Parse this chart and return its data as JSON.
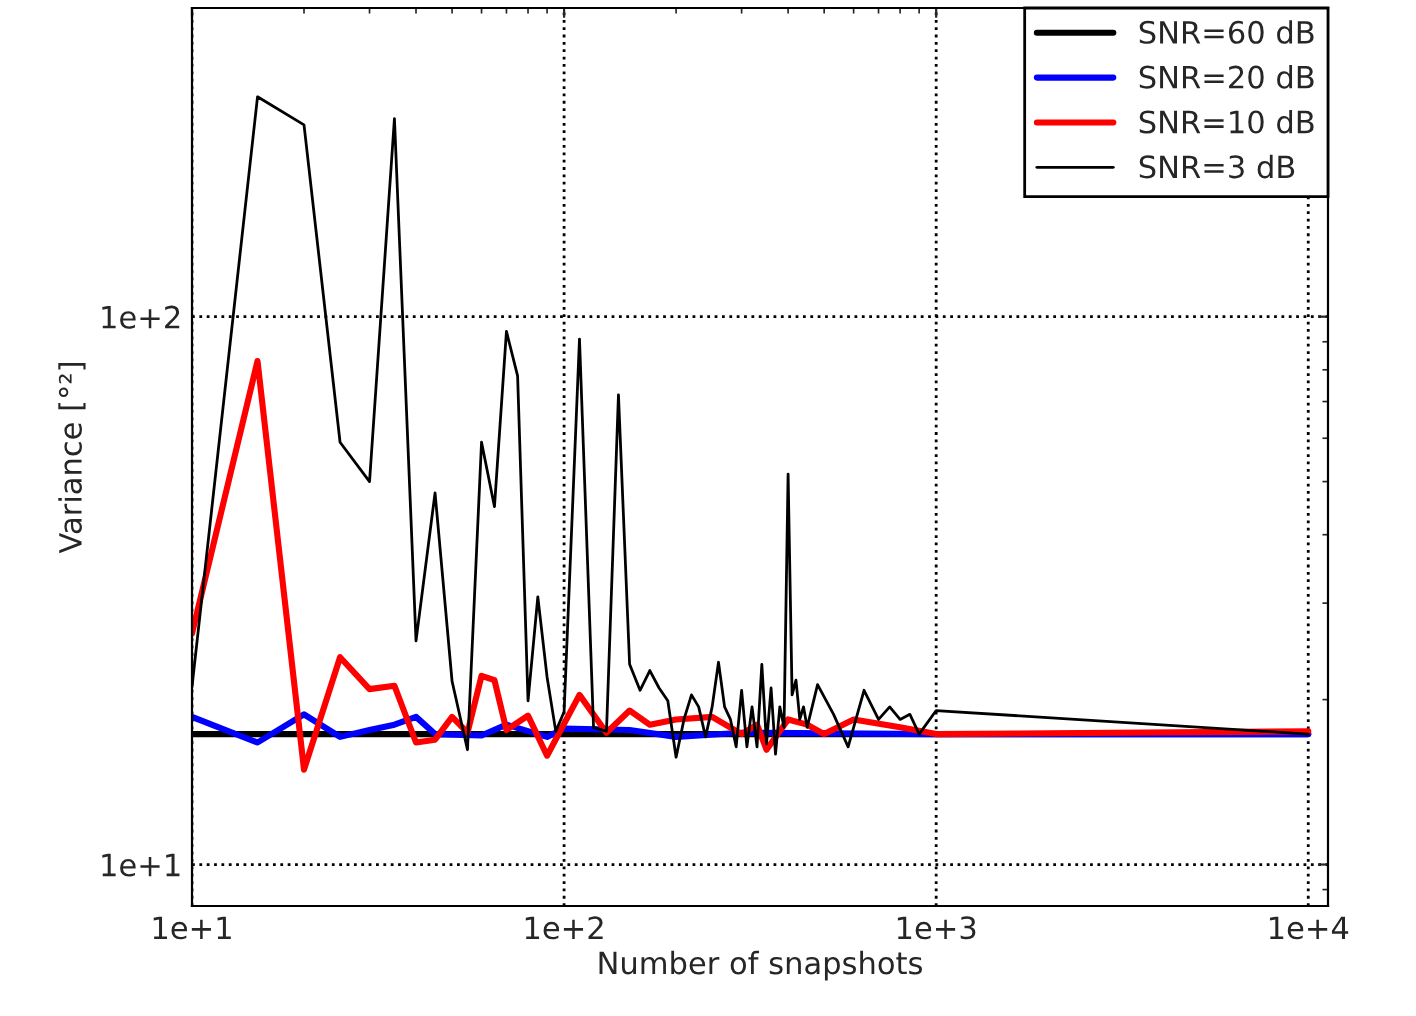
{
  "chart_data": {
    "type": "line",
    "xlabel": "Number of snapshots",
    "ylabel": "Variance [°²]",
    "log": "xy",
    "grid": true,
    "legend": "top right",
    "xlim": [
      10,
      11300
    ],
    "ylim": [
      8.4,
      366
    ],
    "xticks": [
      {
        "value": 10,
        "label": "1e+1"
      },
      {
        "value": 100,
        "label": "1e+2"
      },
      {
        "value": 1000,
        "label": "1e+3"
      },
      {
        "value": 10000,
        "label": "1e+4"
      }
    ],
    "yticks": [
      {
        "value": 10,
        "label": "1e+1"
      },
      {
        "value": 100,
        "label": "1e+2"
      }
    ],
    "series": [
      {
        "name": "SNR=60 dB",
        "color": "#000000",
        "x": [
          10,
          100,
          1000,
          10000
        ],
        "values": [
          17.3,
          17.3,
          17.3,
          17.3
        ]
      },
      {
        "name": "SNR=20 dB",
        "color": "#0000ff",
        "x": [
          10,
          15,
          20,
          25,
          30,
          35,
          40,
          45,
          60,
          70,
          90,
          100,
          150,
          200,
          300,
          1000,
          10000
        ],
        "values": [
          18.6,
          16.7,
          18.8,
          17.1,
          17.6,
          18.0,
          18.6,
          17.3,
          17.2,
          18.0,
          17.1,
          17.7,
          17.6,
          17.1,
          17.4,
          17.3,
          17.3
        ]
      },
      {
        "name": "SNR=10 dB",
        "color": "#ff0000",
        "x": [
          10,
          15,
          20,
          25,
          30,
          35,
          40,
          45,
          50,
          55,
          60,
          65,
          70,
          80,
          90,
          110,
          130,
          150,
          170,
          200,
          250,
          300,
          330,
          350,
          400,
          450,
          500,
          600,
          800,
          1000,
          10000
        ],
        "values": [
          26.4,
          83,
          14.9,
          23.9,
          20.9,
          21.2,
          16.7,
          16.9,
          18.6,
          17.4,
          22.1,
          21.7,
          17.6,
          18.7,
          15.8,
          20.4,
          17.4,
          19.1,
          18.0,
          18.4,
          18.6,
          17.3,
          18.0,
          16.2,
          18.4,
          18.0,
          17.3,
          18.4,
          17.8,
          17.3,
          17.5
        ]
      },
      {
        "name": "SNR=3 dB",
        "color": "#000000",
        "x": [
          10,
          15,
          20,
          25,
          30,
          35,
          40,
          45,
          50,
          55,
          60,
          65,
          70,
          75,
          80,
          85,
          90,
          95,
          100,
          110,
          120,
          130,
          140,
          150,
          160,
          170,
          180,
          190,
          200,
          210,
          220,
          230,
          240,
          250,
          260,
          270,
          280,
          290,
          300,
          310,
          320,
          330,
          340,
          350,
          360,
          370,
          380,
          390,
          400,
          410,
          420,
          430,
          440,
          450,
          480,
          530,
          580,
          640,
          700,
          750,
          800,
          850,
          900,
          1000,
          10000
        ],
        "values": [
          21.1,
          252,
          224,
          59,
          50,
          230,
          25.6,
          47.7,
          21.6,
          16.2,
          59,
          45,
          94,
          78,
          19.9,
          30.8,
          22,
          17.5,
          19,
          91,
          17.8,
          17.5,
          72,
          23.2,
          20.8,
          22.6,
          21,
          19.9,
          15.7,
          18.4,
          20.4,
          19.4,
          17.1,
          19.4,
          23.4,
          19.4,
          18.4,
          16.4,
          20.8,
          16.4,
          19.4,
          16.4,
          23.2,
          16.6,
          21,
          15.9,
          19.4,
          17.8,
          51.6,
          20.4,
          21.7,
          18.4,
          19.4,
          17.8,
          21.3,
          18.8,
          16.4,
          20.8,
          18.4,
          19.4,
          18.4,
          18.8,
          17.3,
          19.1,
          17.3
        ]
      }
    ]
  }
}
